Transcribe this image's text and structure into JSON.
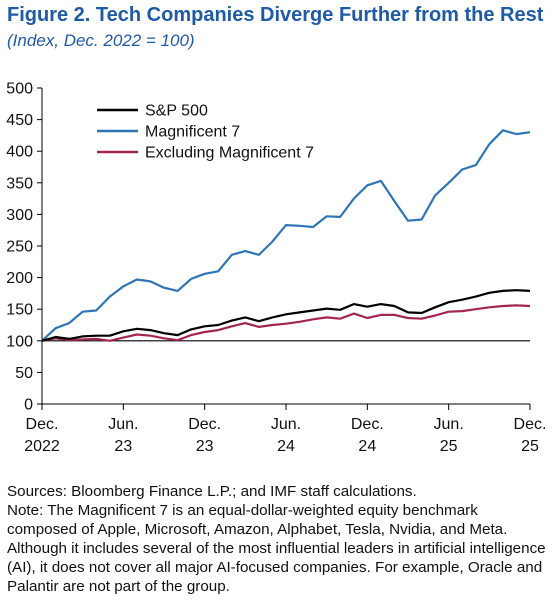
{
  "figure": {
    "title": "Figure 2.  Tech Companies Diverge Further from the Rest",
    "subtitle": "(Index, Dec. 2022 = 100)"
  },
  "chart_data": {
    "type": "line",
    "ylim": [
      0,
      500
    ],
    "yticks": [
      0,
      50,
      100,
      150,
      200,
      250,
      300,
      350,
      400,
      450,
      500
    ],
    "x": [
      "Dec 2022",
      "Jan 2023",
      "Feb 2023",
      "Mar 2023",
      "Apr 2023",
      "May 2023",
      "Jun 2023",
      "Jul 2023",
      "Aug 2023",
      "Sep 2023",
      "Oct 2023",
      "Nov 2023",
      "Dec 2023",
      "Jan 2024",
      "Feb 2024",
      "Mar 2024",
      "Apr 2024",
      "May 2024",
      "Jun 2024",
      "Jul 2024",
      "Aug 2024",
      "Sep 2024",
      "Oct 2024",
      "Nov 2024",
      "Dec 2024",
      "Jan 2025",
      "Feb 2025",
      "Mar 2025",
      "Apr 2025",
      "May 2025",
      "Jun 2025",
      "Jul 2025",
      "Aug 2025",
      "Sep 2025",
      "Oct 2025",
      "Nov 2025",
      "Dec 2025"
    ],
    "xtick_labels": [
      {
        "index": 0,
        "line1": "Dec.",
        "line2": "2022"
      },
      {
        "index": 6,
        "line1": "Jun.",
        "line2": "23"
      },
      {
        "index": 12,
        "line1": "Dec.",
        "line2": "23"
      },
      {
        "index": 18,
        "line1": "Jun.",
        "line2": "24"
      },
      {
        "index": 24,
        "line1": "Dec.",
        "line2": "24"
      },
      {
        "index": 30,
        "line1": "Jun.",
        "line2": "25"
      },
      {
        "index": 36,
        "line1": "Dec.",
        "line2": "25"
      }
    ],
    "reference_line": 100,
    "legend_position": "top-left",
    "series": [
      {
        "name": "S&P 500",
        "color": "#000000",
        "values": [
          100,
          106,
          103,
          107,
          108,
          108,
          115,
          119,
          117,
          112,
          109,
          118,
          123,
          125,
          132,
          137,
          131,
          137,
          142,
          145,
          148,
          151,
          149,
          158,
          154,
          158,
          155,
          145,
          144,
          153,
          161,
          165,
          170,
          176,
          179,
          180,
          179
        ]
      },
      {
        "name": "Magnificent 7",
        "color": "#2e75b6",
        "values": [
          100,
          120,
          128,
          146,
          148,
          170,
          186,
          197,
          194,
          184,
          179,
          198,
          206,
          210,
          236,
          242,
          236,
          257,
          283,
          282,
          280,
          297,
          296,
          325,
          346,
          353,
          321,
          290,
          292,
          330,
          350,
          371,
          378,
          411,
          433,
          427,
          430
        ]
      },
      {
        "name": "Excluding Magnificent 7",
        "color": "#a3264f",
        "values": [
          100,
          104,
          101,
          102,
          103,
          100,
          105,
          110,
          108,
          104,
          101,
          109,
          114,
          117,
          123,
          128,
          122,
          125,
          127,
          130,
          134,
          137,
          135,
          143,
          136,
          141,
          141,
          136,
          135,
          140,
          146,
          147,
          150,
          153,
          155,
          156,
          155
        ]
      }
    ]
  },
  "notes": {
    "sources": "Sources: Bloomberg Finance L.P.; and IMF staff calculations.",
    "note": "Note: The Magnificent 7 is an equal-dollar-weighted equity benchmark composed of Apple, Microsoft, Amazon, Alphabet, Tesla, Nvidia, and Meta. Although it includes several of the most influential leaders in artificial intelligence (AI), it does not cover all major AI-focused companies. For example, Oracle and Palantir are not part of the group."
  }
}
